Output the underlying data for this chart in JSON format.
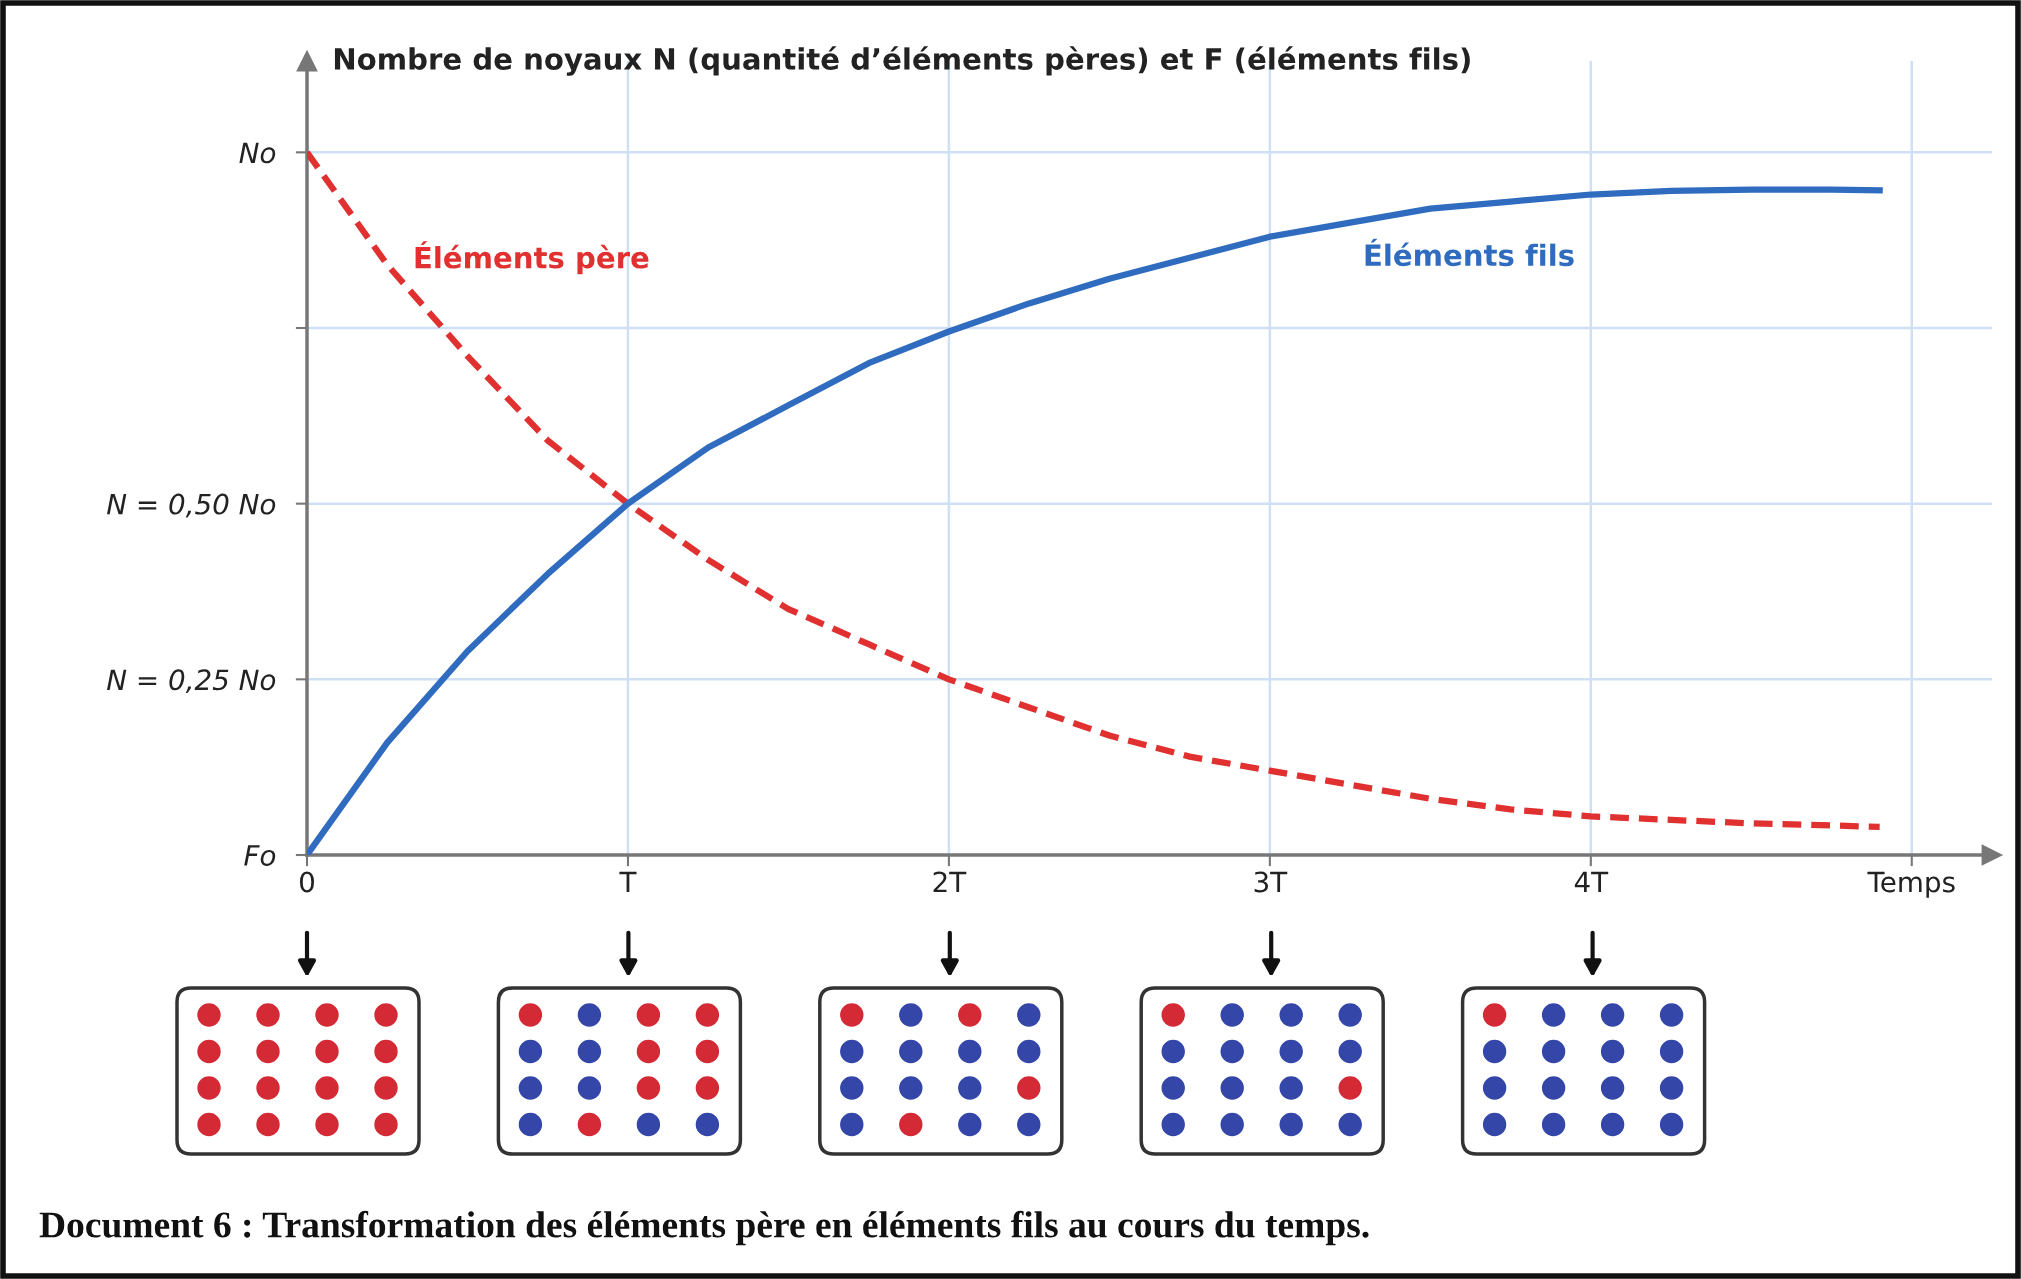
{
  "chart_data": {
    "type": "line",
    "ylabel": "Nombre de noyaux N (quantité d’éléments pères) et F (éléments fils)",
    "x": [
      0,
      0.25,
      0.5,
      0.75,
      1,
      1.25,
      1.5,
      1.75,
      2,
      2.25,
      2.5,
      2.75,
      3,
      3.25,
      3.5,
      3.75,
      4,
      4.25,
      4.5,
      4.75,
      4.9
    ],
    "series": [
      {
        "name": "Éléments père",
        "color": "#e03030",
        "line_style": "dashed",
        "values": [
          1,
          0.84,
          0.71,
          0.59,
          0.5,
          0.42,
          0.35,
          0.3,
          0.25,
          0.21,
          0.17,
          0.14,
          0.12,
          0.1,
          0.08,
          0.065,
          0.055,
          0.05,
          0.045,
          0.042,
          0.04
        ]
      },
      {
        "name": "Éléments fils",
        "color": "#2f6bbf",
        "line_style": "solid",
        "values": [
          0,
          0.16,
          0.29,
          0.4,
          0.5,
          0.58,
          0.64,
          0.7,
          0.745,
          0.785,
          0.82,
          0.85,
          0.88,
          0.9,
          0.92,
          0.93,
          0.94,
          0.945,
          0.947,
          0.947,
          0.946
        ]
      }
    ],
    "xlim": [
      0,
      5.25
    ],
    "xticks": [
      0,
      {
        "value": 1,
        "label": "T"
      },
      {
        "value": 2,
        "label": "2T"
      },
      {
        "value": 3,
        "label": "3T"
      },
      {
        "value": 4,
        "label": "4T"
      },
      {
        "value": 5,
        "label": "Temps"
      }
    ],
    "ylim": [
      0,
      1.13
    ],
    "yticks": [
      {
        "value": 0,
        "label": "Fo"
      },
      {
        "value": 0.25,
        "label": "N = 0,25 No"
      },
      {
        "value": 0.5,
        "label": "N = 0,50 No"
      },
      {
        "value": 0.75,
        "label": null
      },
      {
        "value": 1,
        "label": "No"
      }
    ],
    "grid": true,
    "annotations": [
      "Document 6 : Transformation des éléments père en éléments fils au cours du temps."
    ]
  }
}
